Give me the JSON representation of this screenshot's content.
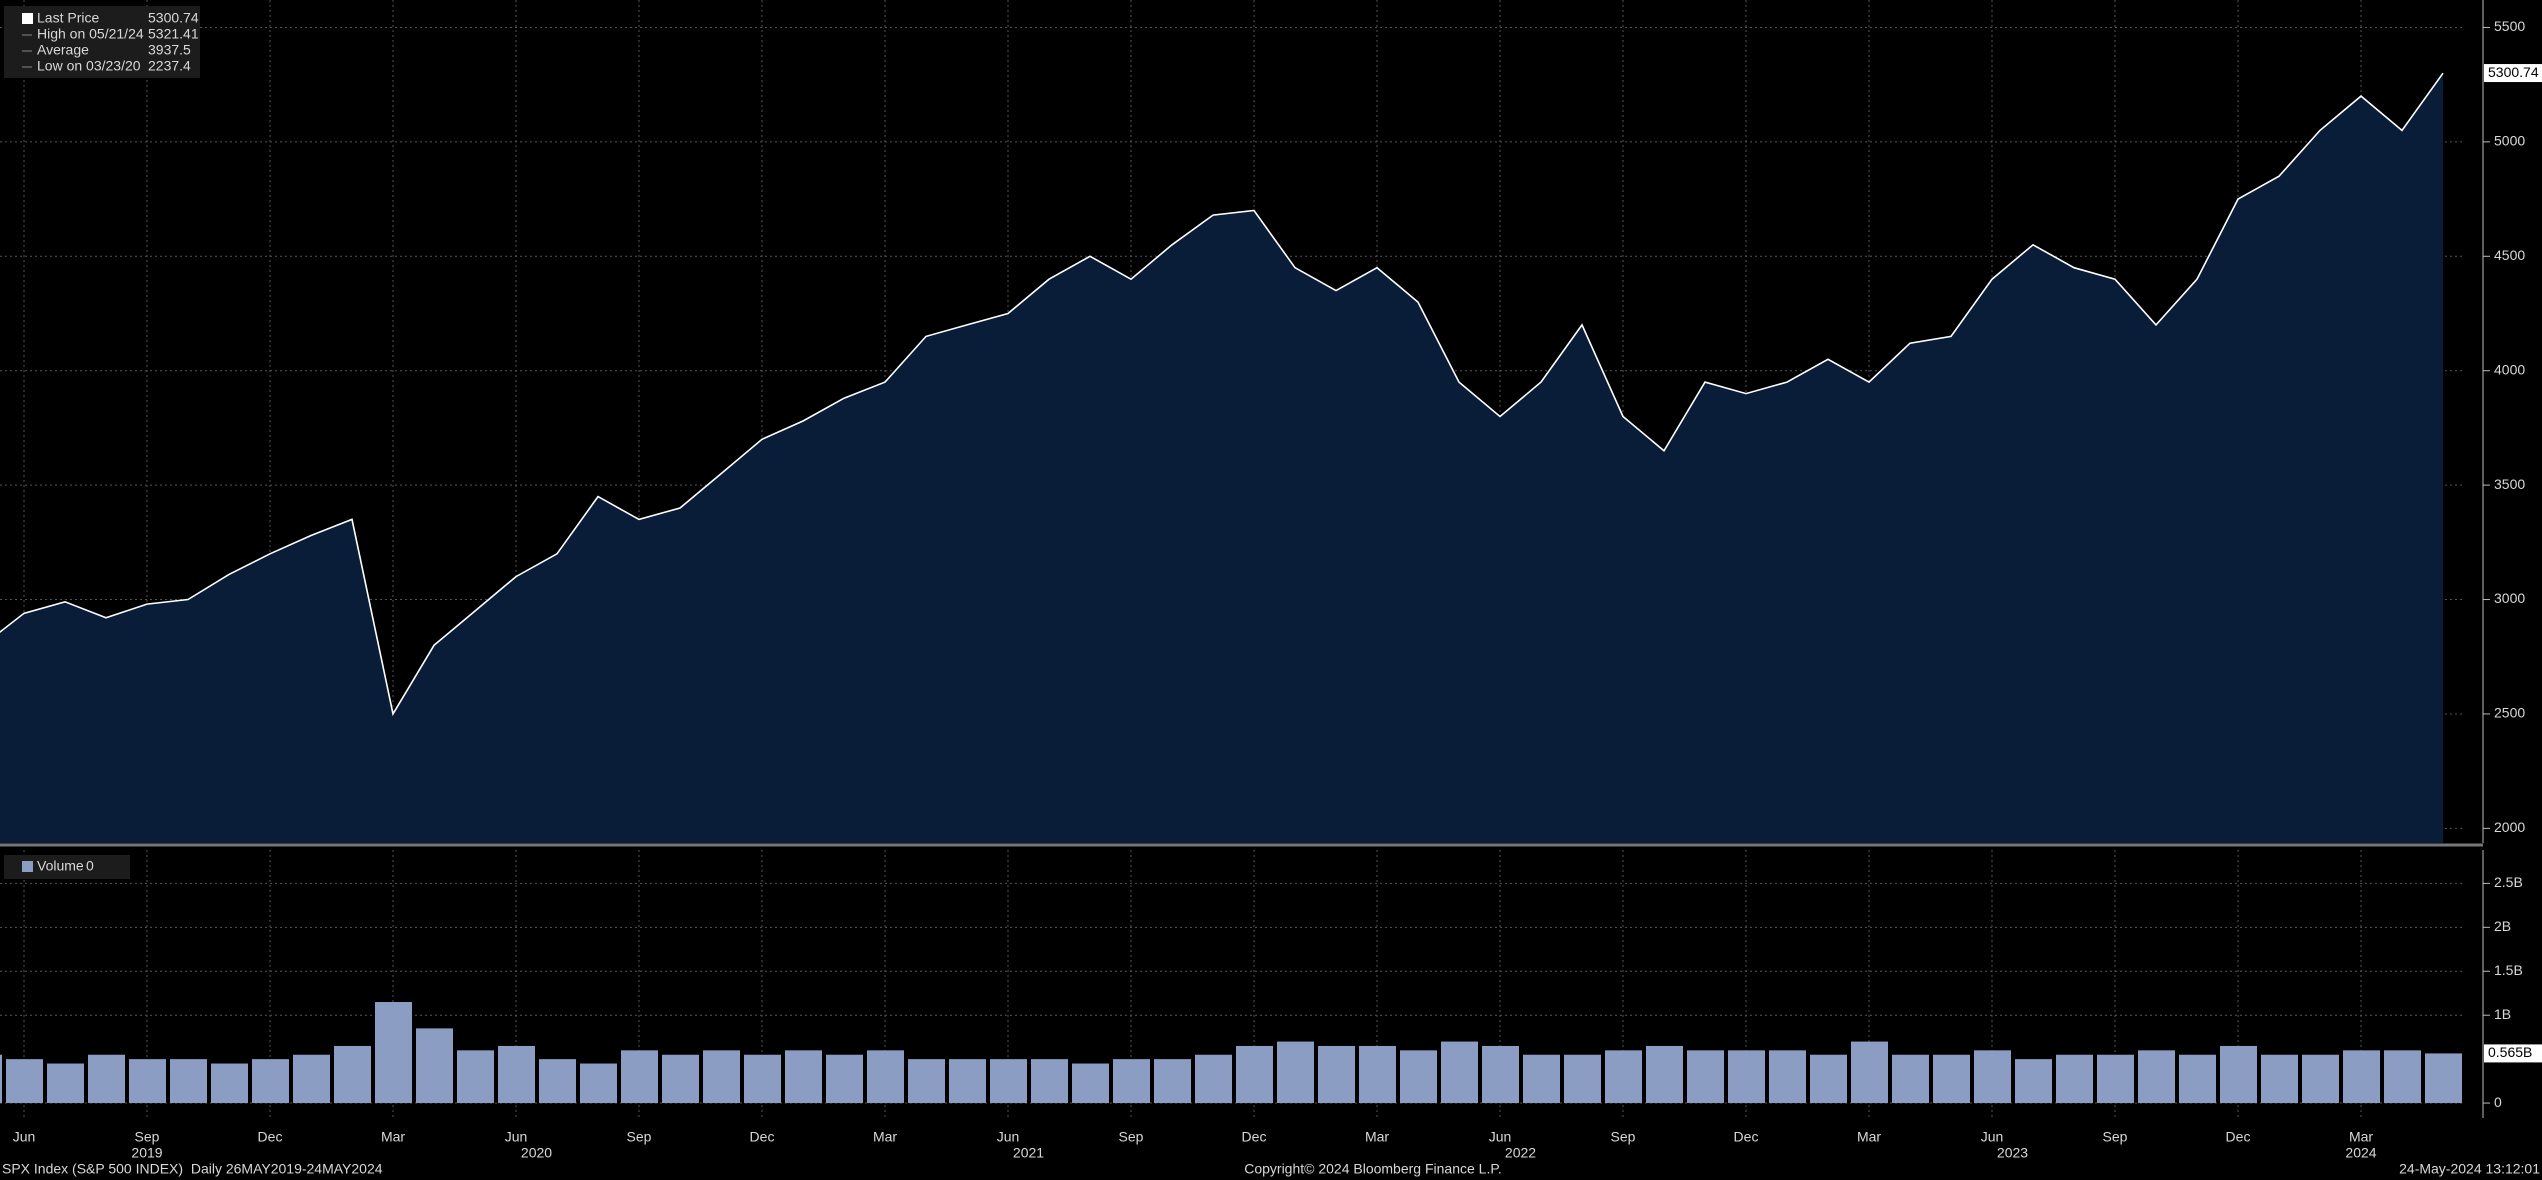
{
  "chart_data": [
    {
      "type": "area",
      "x": [
        "2019-05",
        "2019-06",
        "2019-07",
        "2019-08",
        "2019-09",
        "2019-10",
        "2019-11",
        "2019-12",
        "2020-01",
        "2020-02",
        "2020-03",
        "2020-04",
        "2020-05",
        "2020-06",
        "2020-07",
        "2020-08",
        "2020-09",
        "2020-10",
        "2020-11",
        "2020-12",
        "2021-01",
        "2021-02",
        "2021-03",
        "2021-04",
        "2021-05",
        "2021-06",
        "2021-07",
        "2021-08",
        "2021-09",
        "2021-10",
        "2021-11",
        "2021-12",
        "2022-01",
        "2022-02",
        "2022-03",
        "2022-04",
        "2022-05",
        "2022-06",
        "2022-07",
        "2022-08",
        "2022-09",
        "2022-10",
        "2022-11",
        "2022-12",
        "2023-01",
        "2023-02",
        "2023-03",
        "2023-04",
        "2023-05",
        "2023-06",
        "2023-07",
        "2023-08",
        "2023-09",
        "2023-10",
        "2023-11",
        "2023-12",
        "2024-01",
        "2024-02",
        "2024-03",
        "2024-04",
        "2024-05"
      ],
      "series": [
        {
          "name": "Last Price",
          "color": "#ffffff",
          "fill": "#0a1d38",
          "values": [
            2800,
            2940,
            2990,
            2920,
            2980,
            3000,
            3110,
            3200,
            3280,
            3350,
            2500,
            2800,
            2950,
            3100,
            3200,
            3450,
            3350,
            3400,
            3550,
            3700,
            3780,
            3880,
            3950,
            4150,
            4200,
            4250,
            4400,
            4500,
            4400,
            4550,
            4680,
            4700,
            4450,
            4350,
            4450,
            4300,
            3950,
            3800,
            3950,
            4200,
            3800,
            3650,
            3950,
            3900,
            3950,
            4050,
            3950,
            4120,
            4150,
            4400,
            4550,
            4450,
            4400,
            4200,
            4400,
            4750,
            4850,
            5050,
            5200,
            5050,
            5300
          ]
        }
      ],
      "ylim": [
        1936,
        5620
      ],
      "yticks": [
        2000,
        2500,
        3000,
        3500,
        4000,
        4500,
        5000,
        5500
      ],
      "xticks": [
        {
          "value": "2019-06",
          "label": "Jun"
        },
        {
          "value": "2019-09",
          "label": "Sep"
        },
        {
          "value": "2019-12",
          "label": "Dec"
        },
        {
          "value": "2020-03",
          "label": "Mar"
        },
        {
          "value": "2020-06",
          "label": "Jun"
        },
        {
          "value": "2020-09",
          "label": "Sep"
        },
        {
          "value": "2020-12",
          "label": "Dec"
        },
        {
          "value": "2021-03",
          "label": "Mar"
        },
        {
          "value": "2021-06",
          "label": "Jun"
        },
        {
          "value": "2021-09",
          "label": "Sep"
        },
        {
          "value": "2021-12",
          "label": "Dec"
        },
        {
          "value": "2022-03",
          "label": "Mar"
        },
        {
          "value": "2022-06",
          "label": "Jun"
        },
        {
          "value": "2022-09",
          "label": "Sep"
        },
        {
          "value": "2022-12",
          "label": "Dec"
        },
        {
          "value": "2023-03",
          "label": "Mar"
        },
        {
          "value": "2023-06",
          "label": "Jun"
        },
        {
          "value": "2023-09",
          "label": "Sep"
        },
        {
          "value": "2023-12",
          "label": "Dec"
        },
        {
          "value": "2024-03",
          "label": "Mar"
        }
      ],
      "year_ticks": [
        2019,
        2020,
        2021,
        2022,
        2023,
        2024
      ],
      "legend": [
        {
          "label": "Last Price",
          "value": 5300.74
        },
        {
          "label": "High on 05/21/24",
          "value": 5321.41
        },
        {
          "label": "Average",
          "value": 3937.5
        },
        {
          "label": "Low on 03/23/20",
          "value": 2237.4
        }
      ],
      "grid": true
    },
    {
      "type": "bar",
      "series": [
        {
          "name": "Volume",
          "color": "#8b9dc3",
          "values": [
            0.55,
            0.5,
            0.45,
            0.55,
            0.5,
            0.5,
            0.45,
            0.5,
            0.55,
            0.65,
            1.15,
            0.85,
            0.6,
            0.65,
            0.5,
            0.45,
            0.6,
            0.55,
            0.6,
            0.55,
            0.6,
            0.55,
            0.6,
            0.5,
            0.5,
            0.5,
            0.5,
            0.45,
            0.5,
            0.5,
            0.55,
            0.65,
            0.7,
            0.65,
            0.65,
            0.6,
            0.7,
            0.65,
            0.55,
            0.55,
            0.6,
            0.65,
            0.6,
            0.6,
            0.6,
            0.55,
            0.7,
            0.55,
            0.55,
            0.6,
            0.5,
            0.55,
            0.55,
            0.6,
            0.55,
            0.65,
            0.55,
            0.55,
            0.6,
            0.6,
            0.565
          ]
        }
      ],
      "legend": [
        {
          "label": "Volume",
          "value": 0
        }
      ],
      "ylim": [
        -0.17,
        2.88
      ],
      "yticks": [
        0,
        {
          "value": 1,
          "label": "1B"
        },
        {
          "value": 1.5,
          "label": "1.5B"
        },
        {
          "value": 2,
          "label": "2B"
        },
        {
          "value": 2.5,
          "label": "2.5B"
        }
      ],
      "last_value_label": "0.565B",
      "grid": true
    }
  ],
  "footer": {
    "left": "SPX Index (S&P 500 INDEX)  Daily 26MAY2019-24MAY2024",
    "center": "Copyright© 2024 Bloomberg Finance L.P.",
    "right": "24-May-2024 13:12:01"
  }
}
